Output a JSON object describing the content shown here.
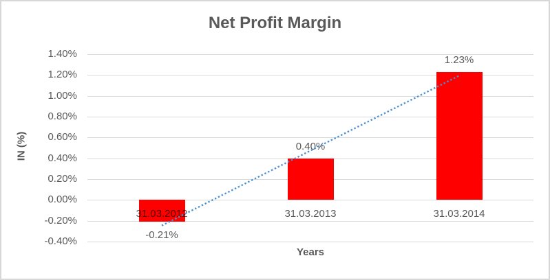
{
  "chart_data": {
    "type": "bar",
    "title": "Net Profit Margin",
    "xlabel": "Years",
    "ylabel": "IN (%)",
    "categories": [
      "31.03.2012",
      "31.03.2013",
      "31.03.2014"
    ],
    "values": [
      -0.21,
      0.4,
      1.23
    ],
    "data_labels": [
      "-0.21%",
      "0.40%",
      "1.23%"
    ],
    "yticks": [
      "1.40%",
      "1.20%",
      "1.00%",
      "0.80%",
      "0.60%",
      "0.40%",
      "0.20%",
      "0.00%",
      "-0.20%",
      "-0.40%"
    ],
    "ytick_values": [
      1.4,
      1.2,
      1.0,
      0.8,
      0.6,
      0.4,
      0.2,
      0.0,
      -0.2,
      -0.4
    ],
    "ylim": [
      -0.4,
      1.4
    ],
    "grid": true,
    "legend": "none",
    "trendline": {
      "type": "linear",
      "style": "dotted",
      "series": "Net Profit Margin"
    },
    "colors": {
      "bar": "#ff0000",
      "trendline": "#4a90d2",
      "gridline": "#d9d9d9",
      "text": "#595959",
      "border": "#d7d7d7",
      "background": "#ffffff"
    }
  }
}
